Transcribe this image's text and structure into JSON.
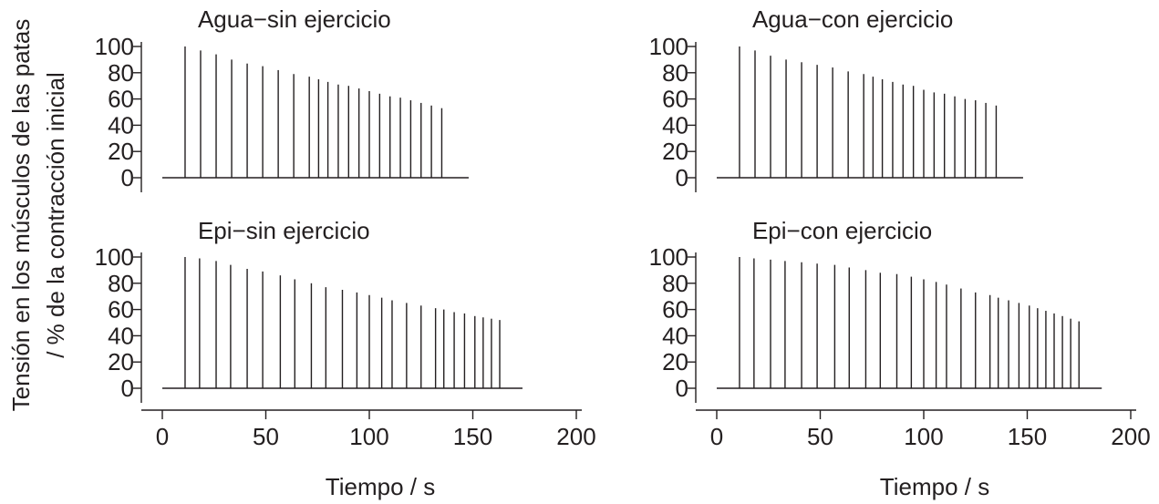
{
  "chart_data": {
    "type": "bar",
    "ylabel": [
      "Tensión en los músculos de las patas",
      "/ % de la contracción inicial"
    ],
    "xlabel": "Tiempo / s",
    "ylim": [
      0,
      100
    ],
    "xlim": [
      0,
      200
    ],
    "yticks": [
      0,
      20,
      40,
      60,
      80,
      100
    ],
    "xticks": [
      0,
      50,
      100,
      150,
      200
    ],
    "grid": false,
    "legend": "none",
    "line_color": "#231f20",
    "panels": [
      {
        "title": "Agua−sin ejercicio",
        "trace_end": 148,
        "x": [
          11,
          18.5,
          26,
          33.5,
          41,
          48.5,
          56,
          63.5,
          71,
          75.5,
          80,
          85,
          90,
          95,
          100,
          105,
          110,
          115,
          120,
          125,
          130,
          135
        ],
        "values": [
          100,
          97,
          94,
          90,
          87,
          85,
          82,
          79,
          77,
          75,
          73,
          71,
          70,
          68,
          66,
          64,
          62,
          61,
          59,
          57,
          55,
          53
        ]
      },
      {
        "title": "Agua−con ejercicio",
        "trace_end": 148,
        "x": [
          11,
          18.5,
          26,
          33.5,
          41,
          48.5,
          56,
          63.5,
          71,
          75.5,
          80,
          85,
          90,
          95,
          100,
          105,
          110,
          115,
          120,
          125,
          130,
          135
        ],
        "values": [
          100,
          97,
          93,
          90,
          88,
          86,
          84,
          81,
          79,
          77,
          75,
          73,
          71,
          70,
          67,
          65,
          64,
          62,
          60,
          59,
          57,
          55
        ]
      },
      {
        "title": "Epi−sin ejercicio",
        "trace_end": 174,
        "x": [
          11,
          18,
          26,
          33,
          41,
          48.5,
          57,
          64,
          72,
          79,
          87,
          94,
          100,
          106,
          111,
          118,
          125,
          132,
          136,
          141,
          146,
          151,
          155,
          159,
          163
        ],
        "values": [
          100,
          99,
          97,
          94,
          91,
          89,
          86,
          83,
          80,
          77,
          75,
          73,
          71,
          69,
          67,
          65,
          63,
          61,
          60,
          58,
          57,
          55,
          54,
          53,
          52
        ]
      },
      {
        "title": "Epi−con ejercicio",
        "trace_end": 186,
        "x": [
          11,
          18,
          26,
          33,
          41,
          48.5,
          57,
          64,
          72,
          79,
          87,
          94,
          100,
          106,
          111,
          118,
          125,
          132,
          136,
          141,
          146,
          151,
          155,
          159,
          163,
          167,
          171,
          175
        ],
        "values": [
          100,
          99,
          98,
          97,
          96,
          95,
          94,
          92,
          90,
          88,
          87,
          85,
          83,
          81,
          79,
          76,
          73,
          71,
          69,
          67,
          65,
          63,
          61,
          59,
          57,
          55,
          53,
          51
        ]
      }
    ]
  }
}
